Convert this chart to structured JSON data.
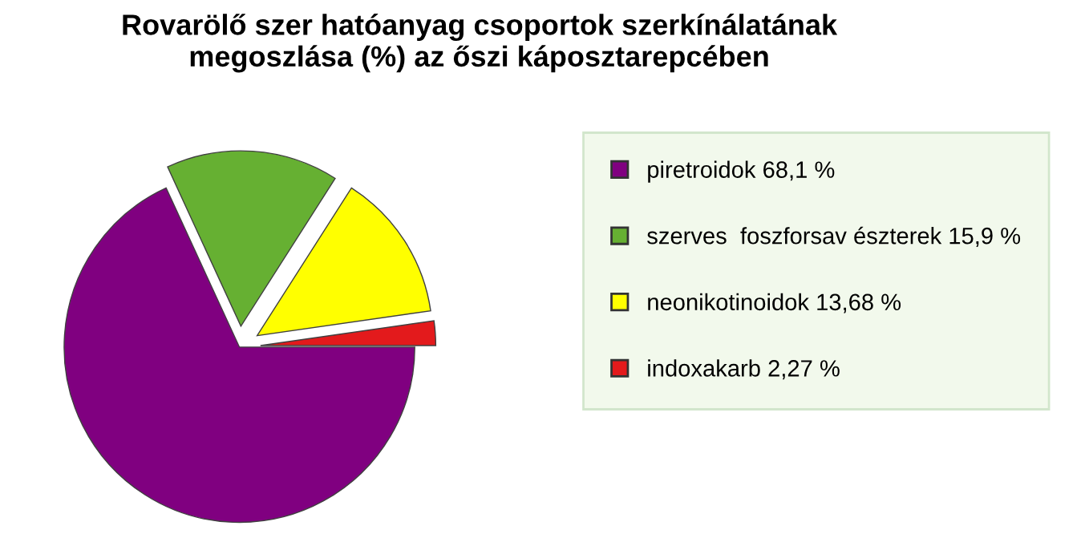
{
  "chart_data": {
    "type": "pie",
    "title": "Rovarölő szer hatóanyag csoportok szerkínálatának\nmegoszlása (%) az őszi káposztarepcében",
    "categories": [
      "piretroidok",
      "szerves  foszforsav észterek",
      "neonikotinoidok",
      "indoxakarb"
    ],
    "values": [
      68.1,
      15.9,
      13.68,
      2.27
    ],
    "value_labels": [
      "68,1 %",
      "15,9 %",
      "13,68 %",
      "2,27 %"
    ],
    "colors": [
      "#800080",
      "#66b032",
      "#ffff00",
      "#e31a1c"
    ],
    "legend": "right"
  }
}
